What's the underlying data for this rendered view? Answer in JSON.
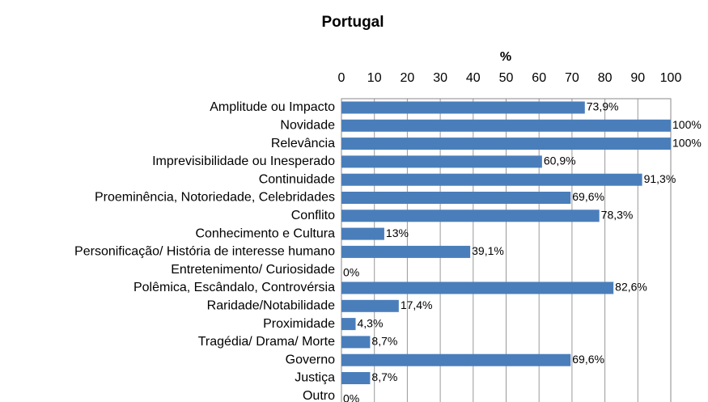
{
  "chart_data": {
    "type": "bar",
    "orientation": "horizontal",
    "title": "Portugal",
    "x_label": "%",
    "categories": [
      "Amplitude ou Impacto",
      "Novidade",
      "Relevância",
      "Imprevisibilidade ou Inesperado",
      "Continuidade",
      "Proeminência, Notoriedade, Celebridades",
      "Conflito",
      "Conhecimento e Cultura",
      "Personificação/ História de interesse humano",
      "Entretenimento/ Curiosidade",
      "Polêmica, Escândalo, Controvérsia",
      "Raridade/Notabilidade",
      "Proximidade",
      "Tragédia/ Drama/ Morte",
      "Governo",
      "Justiça",
      "Outro"
    ],
    "values": [
      73.9,
      100,
      100,
      60.9,
      91.3,
      69.6,
      78.3,
      13,
      39.1,
      0,
      82.6,
      17.4,
      4.3,
      8.7,
      69.6,
      8.7,
      0
    ],
    "value_labels": [
      "73,9%",
      "100%",
      "100%",
      "60,9%",
      "91,3%",
      "69,6%",
      "78,3%",
      "13%",
      "39,1%",
      "0%",
      "82,6%",
      "17,4%",
      "4,3%",
      "8,7%",
      "69,6%",
      "8,7%",
      "0%"
    ],
    "color": "#4a7ebb",
    "xlim": [
      0,
      100
    ],
    "xticks": [
      0,
      10,
      20,
      30,
      40,
      50,
      60,
      70,
      80,
      90,
      100
    ],
    "grid": true
  }
}
